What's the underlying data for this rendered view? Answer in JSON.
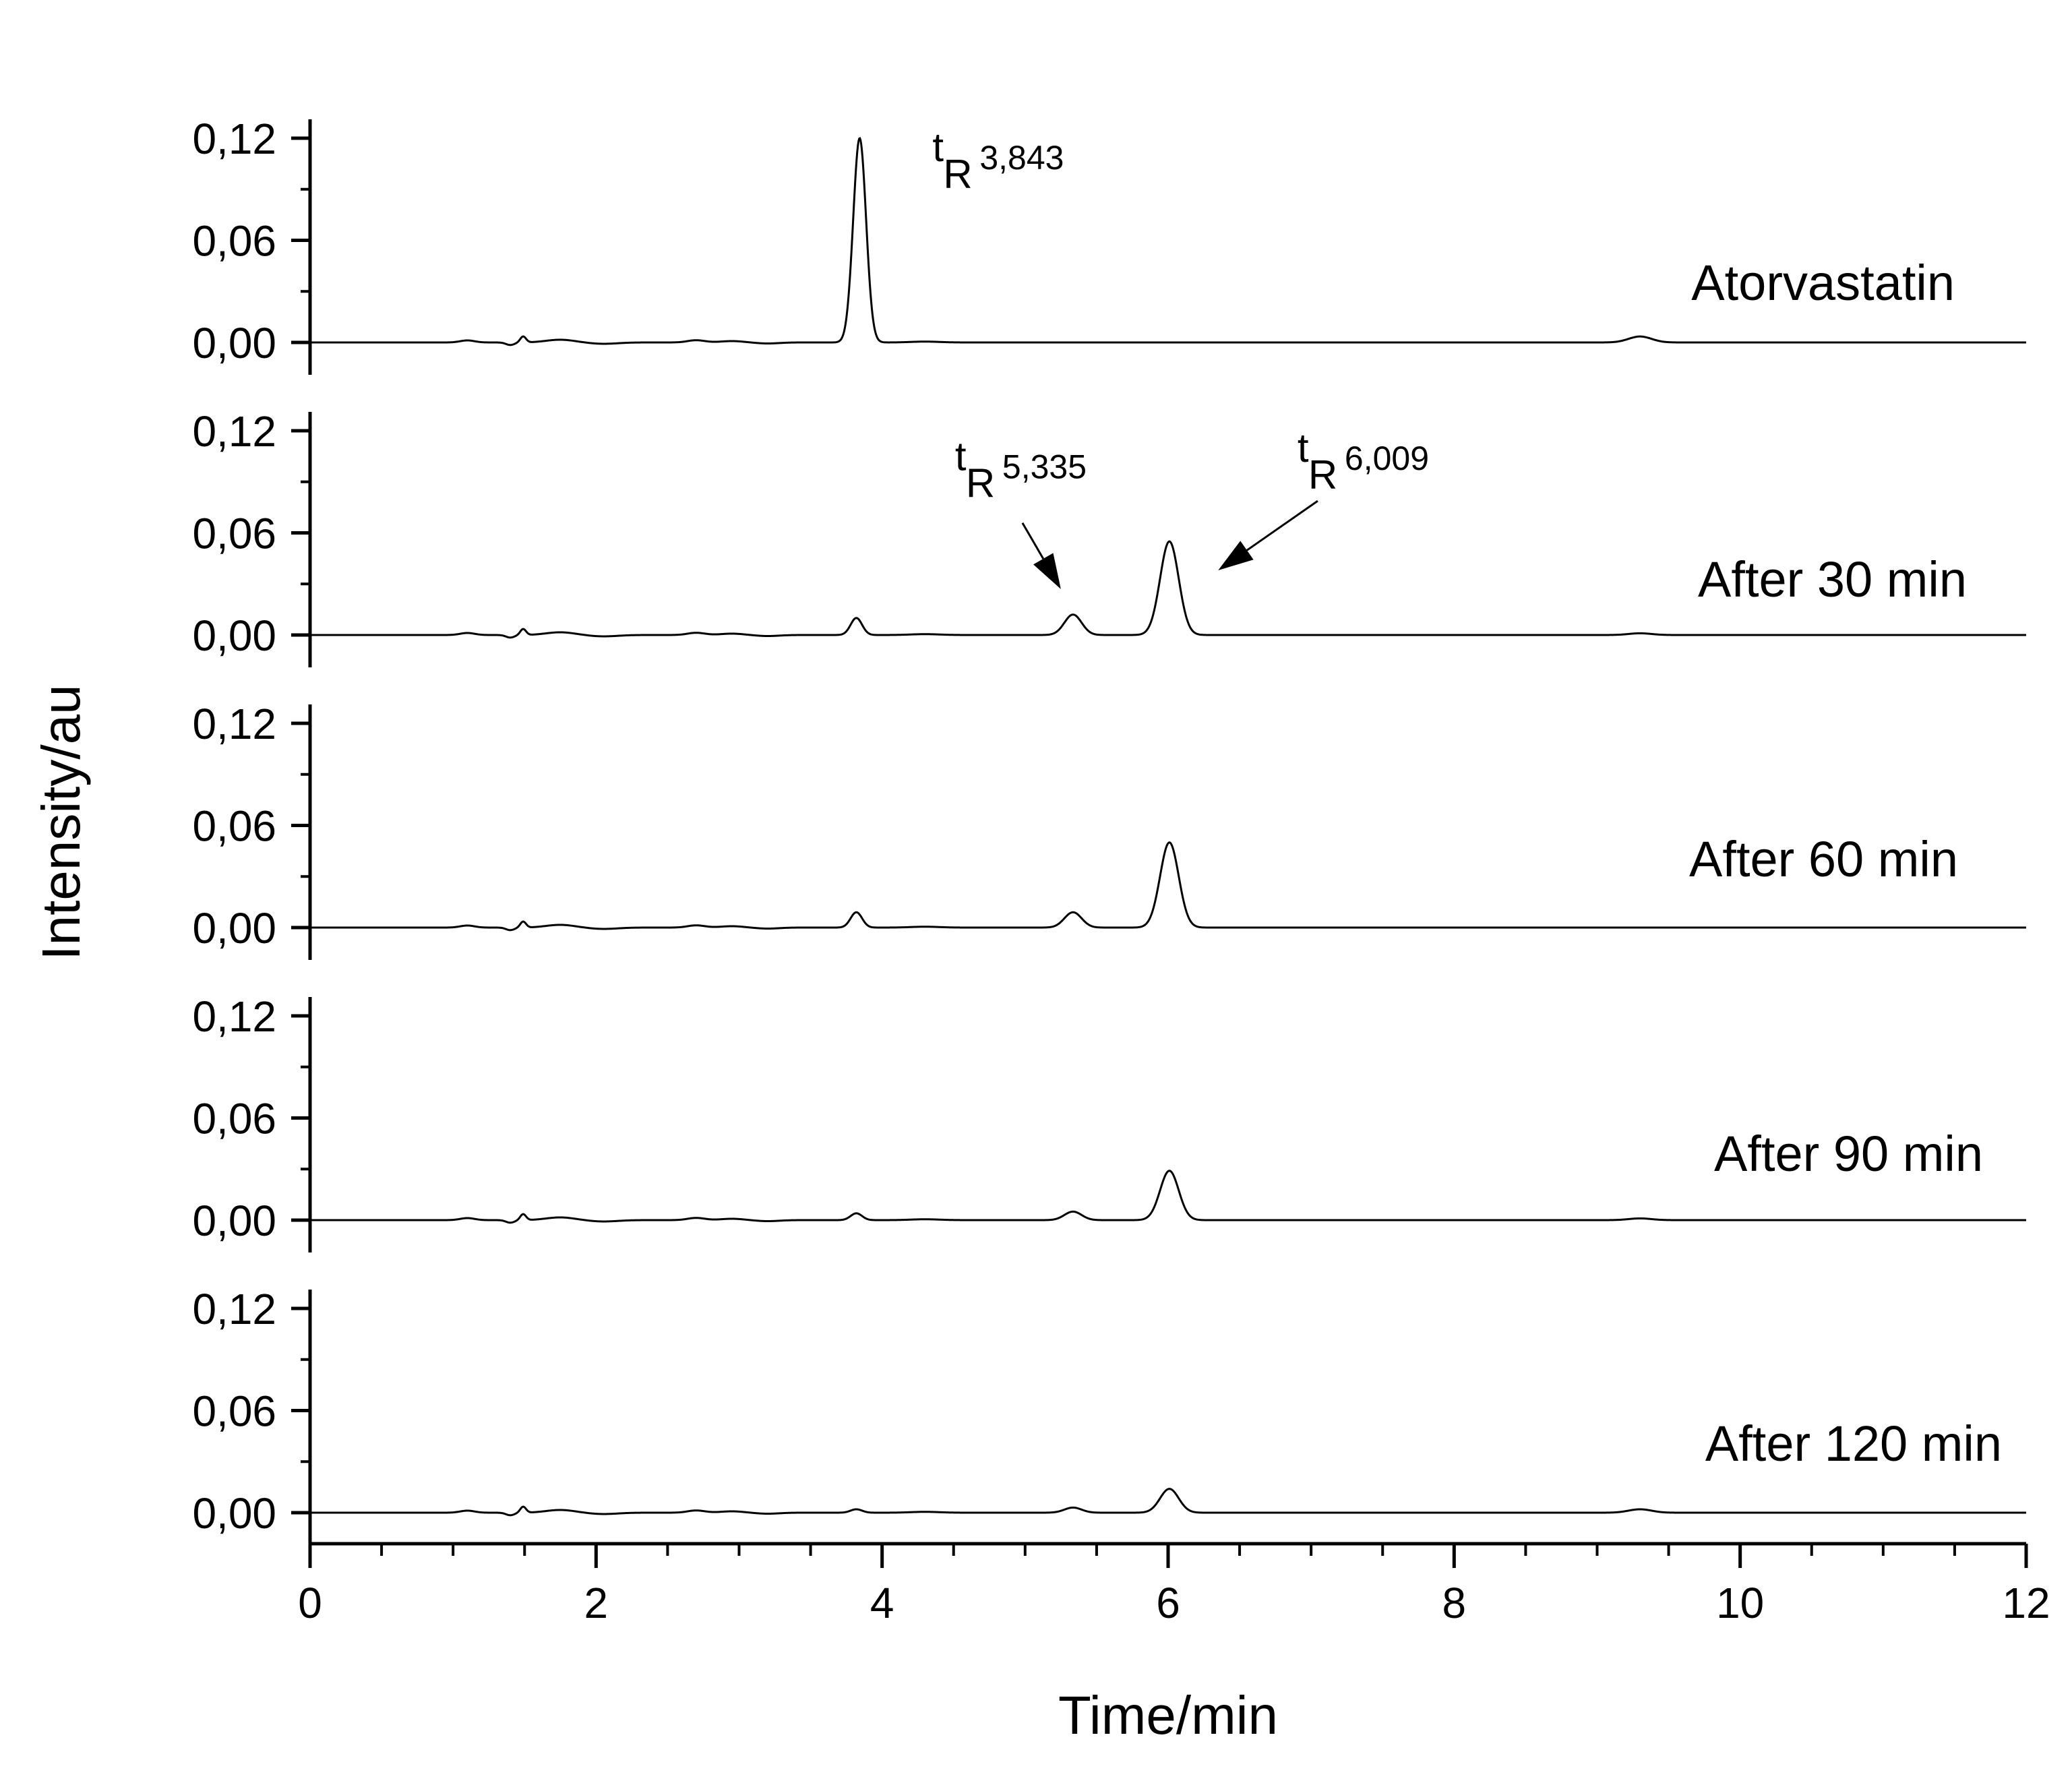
{
  "chart_data": {
    "type": "line",
    "subtype": "stacked-chromatograms",
    "xlabel": "Time/min",
    "ylabel": "Intensity/au",
    "xlim": [
      0,
      12
    ],
    "x_ticks": [
      0,
      2,
      4,
      6,
      8,
      10,
      12
    ],
    "x_tick_labels": [
      "0",
      "2",
      "4",
      "6",
      "8",
      "10",
      "12"
    ],
    "ylim_each_panel": [
      -0.02,
      0.13
    ],
    "y_ticks": [
      0.0,
      0.06,
      0.12
    ],
    "y_tick_labels": [
      "0,00",
      "0,06",
      "0,12"
    ],
    "baseline_features": [
      {
        "x": 1.1,
        "y": 0.0012,
        "w": 0.05
      },
      {
        "x": 1.4,
        "y": -0.0015,
        "w": 0.03
      },
      {
        "x": 1.49,
        "y": 0.0035,
        "w": 0.02
      },
      {
        "x": 1.75,
        "y": 0.0016,
        "w": 0.1
      },
      {
        "x": 2.05,
        "y": -0.0008,
        "w": 0.1
      },
      {
        "x": 2.7,
        "y": 0.0013,
        "w": 0.06
      },
      {
        "x": 2.95,
        "y": 0.0008,
        "w": 0.08
      },
      {
        "x": 3.2,
        "y": -0.0006,
        "w": 0.08
      },
      {
        "x": 4.3,
        "y": 0.0005,
        "w": 0.1
      }
    ],
    "series": [
      {
        "name": "Atorvastatin",
        "peaks": [
          {
            "tR": 3.843,
            "height": 0.12,
            "width": 0.045
          },
          {
            "tR": 9.3,
            "height": 0.0035,
            "width": 0.08
          }
        ],
        "annotations": [
          {
            "main": "t",
            "sub": "R",
            "value": "3,843",
            "arrow": false
          }
        ]
      },
      {
        "name": "After 30 min",
        "peaks": [
          {
            "tR": 3.82,
            "height": 0.01,
            "width": 0.04
          },
          {
            "tR": 5.335,
            "height": 0.012,
            "width": 0.06
          },
          {
            "tR": 6.009,
            "height": 0.055,
            "width": 0.065
          },
          {
            "tR": 9.3,
            "height": 0.001,
            "width": 0.08
          }
        ],
        "annotations": [
          {
            "main": "t",
            "sub": "R",
            "value": "5,335",
            "arrow": true,
            "arrow_target": {
              "x": 5.25,
              "y": 0.027
            }
          },
          {
            "main": "t",
            "sub": "R",
            "value": "6,009",
            "arrow": true,
            "arrow_target": {
              "x": 6.35,
              "y": 0.038
            }
          }
        ]
      },
      {
        "name": "After 60 min",
        "peaks": [
          {
            "tR": 3.82,
            "height": 0.009,
            "width": 0.04
          },
          {
            "tR": 5.335,
            "height": 0.009,
            "width": 0.06
          },
          {
            "tR": 6.009,
            "height": 0.05,
            "width": 0.065
          }
        ],
        "annotations": []
      },
      {
        "name": "After 90 min",
        "peaks": [
          {
            "tR": 3.82,
            "height": 0.004,
            "width": 0.04
          },
          {
            "tR": 5.335,
            "height": 0.005,
            "width": 0.06
          },
          {
            "tR": 6.009,
            "height": 0.029,
            "width": 0.065
          },
          {
            "tR": 9.3,
            "height": 0.001,
            "width": 0.08
          }
        ],
        "annotations": []
      },
      {
        "name": "After 120 min",
        "peaks": [
          {
            "tR": 3.82,
            "height": 0.002,
            "width": 0.04
          },
          {
            "tR": 5.335,
            "height": 0.003,
            "width": 0.06
          },
          {
            "tR": 6.009,
            "height": 0.014,
            "width": 0.065
          },
          {
            "tR": 9.3,
            "height": 0.002,
            "width": 0.08
          }
        ],
        "annotations": []
      }
    ]
  }
}
